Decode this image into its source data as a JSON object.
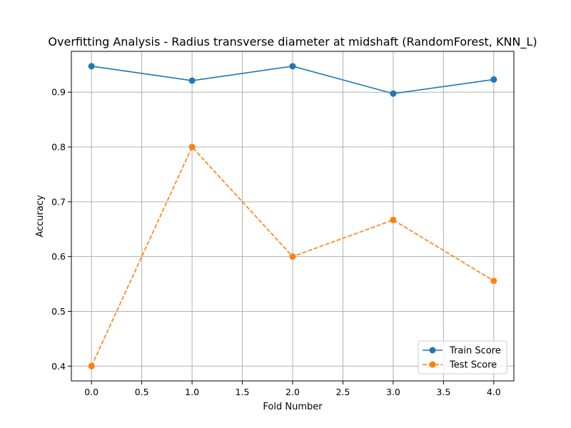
{
  "chart_data": {
    "type": "line",
    "title": "Overfitting Analysis - Radius transverse diameter at midshaft (RandomForest, KNN_L)",
    "xlabel": "Fold Number",
    "ylabel": "Accuracy",
    "x": [
      0,
      1,
      2,
      3,
      4
    ],
    "xlim": [
      -0.2,
      4.2
    ],
    "ylim": [
      0.373,
      0.9745
    ],
    "xticks": [
      0.0,
      0.5,
      1.0,
      1.5,
      2.0,
      2.5,
      3.0,
      3.5,
      4.0
    ],
    "xtick_labels": [
      "0.0",
      "0.5",
      "1.0",
      "1.5",
      "2.0",
      "2.5",
      "3.0",
      "3.5",
      "4.0"
    ],
    "yticks": [
      0.4,
      0.5,
      0.6,
      0.7,
      0.8,
      0.9
    ],
    "ytick_labels": [
      "0.4",
      "0.5",
      "0.6",
      "0.7",
      "0.8",
      "0.9"
    ],
    "grid": true,
    "legend_position": "lower-right",
    "series": [
      {
        "name": "Train Score",
        "values": [
          0.9474,
          0.9211,
          0.9474,
          0.8974,
          0.9231
        ],
        "color": "#1f77b4",
        "line_style": "solid",
        "marker": "circle"
      },
      {
        "name": "Test Score",
        "values": [
          0.4,
          0.8,
          0.6,
          0.6667,
          0.5556
        ],
        "color": "#ff7f0e",
        "line_style": "dashed",
        "marker": "circle"
      }
    ]
  }
}
